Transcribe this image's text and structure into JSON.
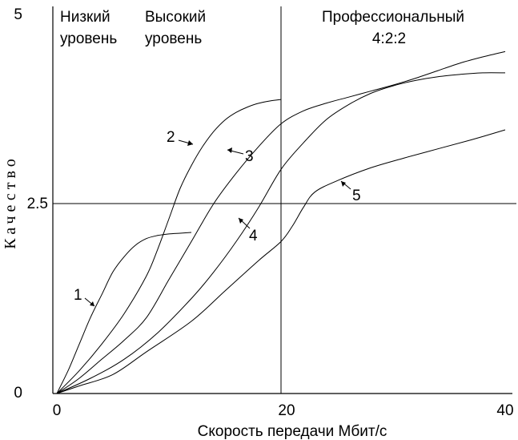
{
  "chart_data": {
    "type": "line",
    "xlabel": "Скорость передачи Мбит/с",
    "ylabel": "Качество",
    "xlim": [
      0,
      40
    ],
    "ylim": [
      0,
      5
    ],
    "x_ticks": [
      "0",
      "20",
      "40"
    ],
    "y_ticks": [
      "0",
      "2.5",
      "5"
    ],
    "grid": false,
    "reference_lines": {
      "vertical_x": 20,
      "horizontal_y": 2.5
    },
    "regions": [
      {
        "lines": [
          "Низкий",
          "уровень"
        ]
      },
      {
        "lines": [
          "Высокий",
          "уровень"
        ]
      },
      {
        "lines": [
          "Профессиональный",
          "4:2:2"
        ]
      }
    ],
    "series": [
      {
        "label": "1",
        "x": [
          0,
          1,
          2,
          3,
          4,
          5,
          6,
          7,
          8,
          9,
          10,
          11,
          12
        ],
        "y": [
          0,
          0.3,
          0.65,
          1.0,
          1.3,
          1.6,
          1.8,
          1.95,
          2.04,
          2.08,
          2.1,
          2.11,
          2.12
        ]
      },
      {
        "label": "2",
        "x": [
          0,
          2,
          4,
          6,
          8,
          9,
          10,
          11,
          12,
          13,
          14,
          15,
          16,
          17,
          18,
          19,
          20
        ],
        "y": [
          0,
          0.3,
          0.65,
          1.05,
          1.55,
          1.9,
          2.3,
          2.7,
          3.0,
          3.25,
          3.45,
          3.6,
          3.7,
          3.77,
          3.82,
          3.85,
          3.87
        ]
      },
      {
        "label": "3",
        "x": [
          0,
          2,
          4,
          6,
          8,
          10,
          12,
          14,
          16,
          18,
          20,
          22,
          24,
          26,
          28,
          30,
          32,
          34,
          36,
          38,
          40
        ],
        "y": [
          0,
          0.2,
          0.45,
          0.7,
          1.0,
          1.5,
          2.0,
          2.5,
          2.9,
          3.25,
          3.55,
          3.72,
          3.82,
          3.9,
          3.98,
          4.06,
          4.15,
          4.25,
          4.35,
          4.43,
          4.5
        ]
      },
      {
        "label": "4",
        "x": [
          0,
          3,
          6,
          9,
          12,
          14,
          16,
          18,
          20,
          22,
          24,
          26,
          28,
          30,
          32,
          34,
          36,
          38,
          40
        ],
        "y": [
          0,
          0.2,
          0.45,
          0.8,
          1.25,
          1.6,
          2.0,
          2.45,
          2.95,
          3.3,
          3.6,
          3.8,
          3.95,
          4.05,
          4.12,
          4.17,
          4.2,
          4.22,
          4.22
        ]
      },
      {
        "label": "5",
        "x": [
          0,
          2,
          5,
          8,
          12,
          15,
          18,
          20,
          21,
          22,
          23,
          25,
          28,
          31,
          34,
          37,
          40
        ],
        "y": [
          0,
          0.1,
          0.25,
          0.55,
          0.95,
          1.35,
          1.75,
          2.0,
          2.2,
          2.45,
          2.65,
          2.8,
          2.97,
          3.1,
          3.22,
          3.34,
          3.47
        ]
      }
    ]
  }
}
